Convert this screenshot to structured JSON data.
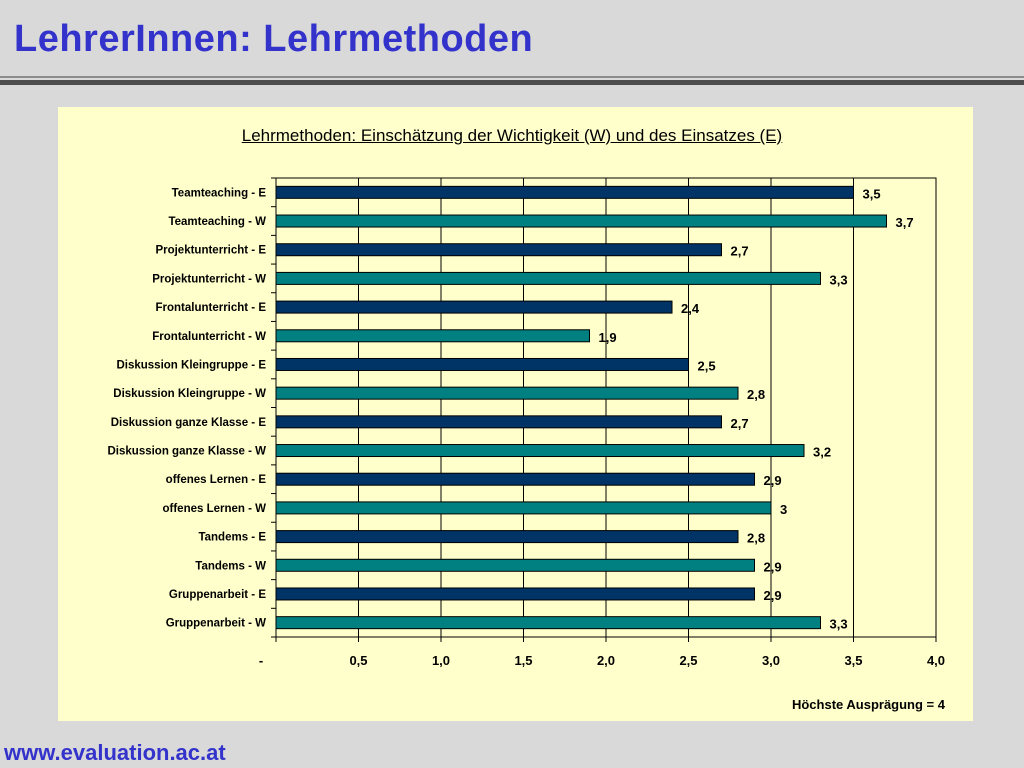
{
  "slide": {
    "title": "LehrerInnen: Lehrmethoden",
    "footer": "www.evaluation.ac.at"
  },
  "chart_data": {
    "type": "bar",
    "orientation": "horizontal",
    "title": "Lehrmethoden: Einschätzung der Wichtigkeit (W) und des Einsatzes (E)",
    "note": "Höchste Ausprägung = 4",
    "categories": [
      "Teamteaching - E",
      "Teamteaching - W",
      "Projektunterricht - E",
      "Projektunterricht - W",
      "Frontalunterricht - E",
      "Frontalunterricht - W",
      "Diskussion Kleingruppe - E",
      "Diskussion Kleingruppe - W",
      "Diskussion ganze Klasse - E",
      "Diskussion ganze Klasse - W",
      "offenes Lernen - E",
      "offenes Lernen - W",
      "Tandems - E",
      "Tandems - W",
      "Gruppenarbeit - E",
      "Gruppenarbeit - W"
    ],
    "values": [
      3.5,
      3.7,
      2.7,
      3.3,
      2.4,
      1.9,
      2.5,
      2.8,
      2.7,
      3.2,
      2.9,
      3.0,
      2.8,
      2.9,
      2.9,
      3.3
    ],
    "value_labels": [
      "3,5",
      "3,7",
      "2,7",
      "3,3",
      "2,4",
      "1,9",
      "2,5",
      "2,8",
      "2,7",
      "3,2",
      "2,9",
      "3",
      "2,8",
      "2,9",
      "2,9",
      "3,3"
    ],
    "bar_colors": [
      "#003366",
      "#008080",
      "#003366",
      "#008080",
      "#003366",
      "#008080",
      "#003366",
      "#008080",
      "#003366",
      "#008080",
      "#003366",
      "#008080",
      "#003366",
      "#008080",
      "#003366",
      "#008080"
    ],
    "x_ticks": [
      0,
      0.5,
      1.0,
      1.5,
      2.0,
      2.5,
      3.0,
      3.5,
      4.0
    ],
    "x_tick_labels": [
      "-",
      "0,5",
      "1,0",
      "1,5",
      "2,0",
      "2,5",
      "3,0",
      "3,5",
      "4,0"
    ],
    "xlim": [
      0,
      4
    ],
    "grid": true,
    "legend": "none"
  }
}
